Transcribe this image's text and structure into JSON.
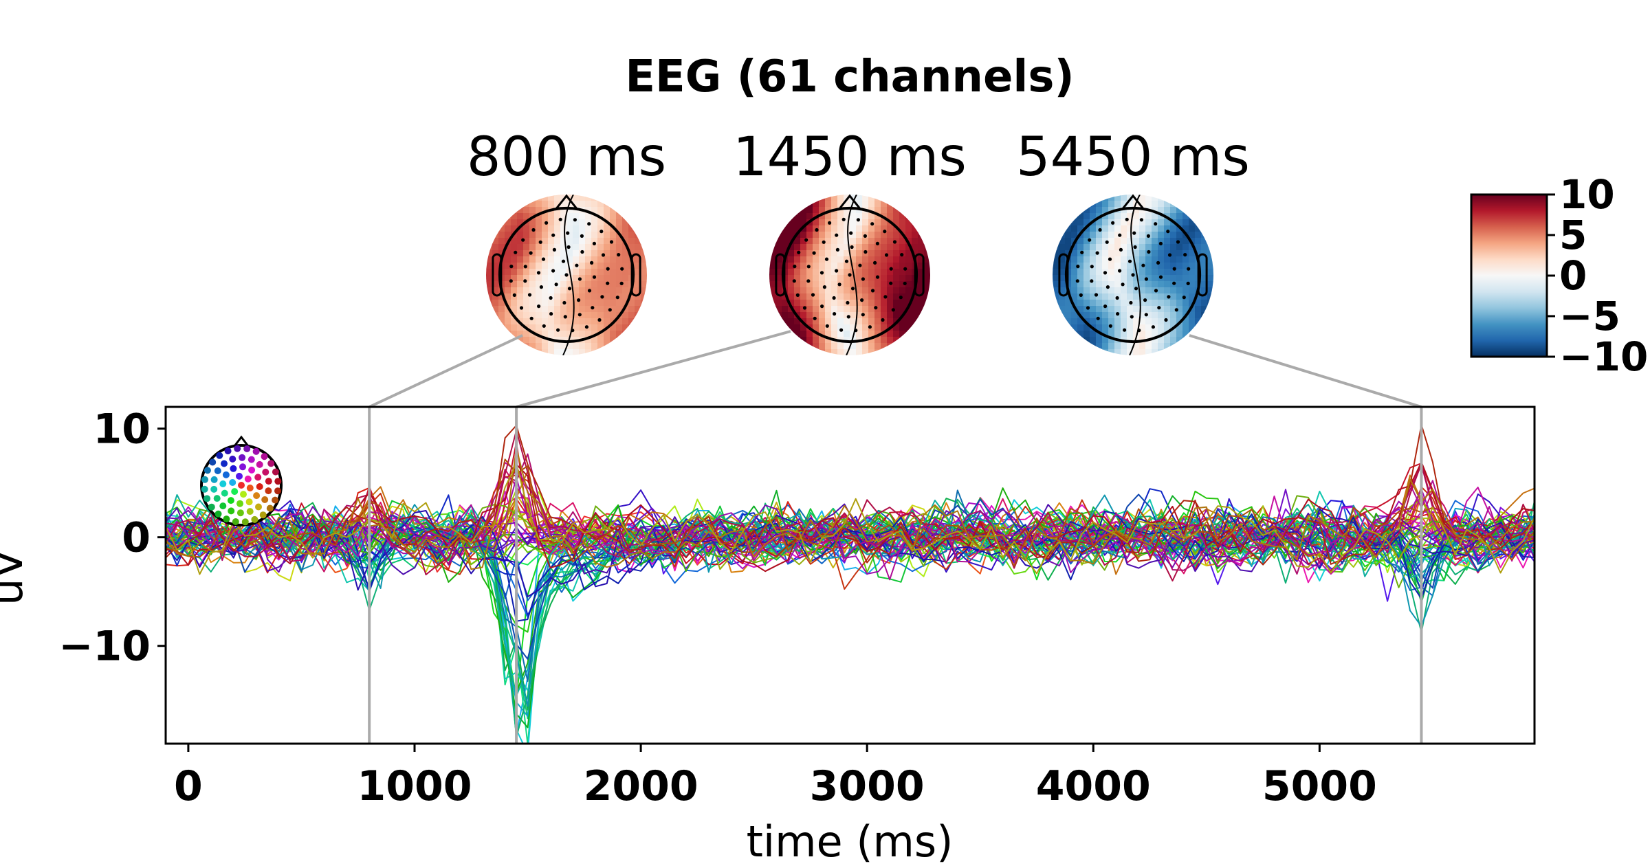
{
  "chart_data": {
    "type": "line",
    "title": "EEG (61 channels)",
    "xlabel": "time (ms)",
    "ylabel": "uV",
    "xlim": [
      -100,
      5950
    ],
    "ylim": [
      -19,
      12
    ],
    "xticks": [
      0,
      1000,
      2000,
      3000,
      4000,
      5000
    ],
    "yticks": [
      10,
      0,
      -10
    ],
    "xtick_labels": [
      "0",
      "1000",
      "2000",
      "3000",
      "4000",
      "5000"
    ],
    "ytick_labels": [
      "10",
      "0",
      "−10"
    ],
    "n_channels": 61,
    "sample_step_ms": 50,
    "topomap_times_ms": [
      800,
      1450,
      5450
    ],
    "topomap_titles": [
      "800 ms",
      "1450 ms",
      "5450 ms"
    ],
    "topomap_patterns": [
      {
        "time_ms": 800,
        "left_sign": -1,
        "right_sign": 1,
        "strength": 0.6
      },
      {
        "time_ms": 1450,
        "left_sign": -1,
        "right_sign": 1,
        "strength": 1.0
      },
      {
        "time_ms": 5450,
        "left_sign": 1,
        "right_sign": -1,
        "strength": 0.8
      }
    ],
    "colorbar": {
      "ticks": [
        10,
        5,
        0,
        -5,
        -10
      ],
      "tick_labels": [
        "10",
        "5",
        "0",
        "−5",
        "−10"
      ],
      "range": [
        -10,
        10
      ],
      "colormap": "RdBu_r"
    },
    "events": [
      {
        "time_ms": 800,
        "spread_uV": 4.5
      },
      {
        "time_ms": 1450,
        "peak_uV": -18,
        "spread_uV": 10
      },
      {
        "time_ms": 5450,
        "spread_uV": 7
      }
    ],
    "noise_uV": 2.2
  },
  "colors": {
    "vline": "#aaaaaa",
    "axis": "#000000",
    "colormap_stops": [
      "#053061",
      "#2166ac",
      "#4393c3",
      "#92c5de",
      "#d1e5f0",
      "#f7f7f7",
      "#fddbc7",
      "#f4a582",
      "#d6604d",
      "#b2182b",
      "#67001f"
    ]
  }
}
